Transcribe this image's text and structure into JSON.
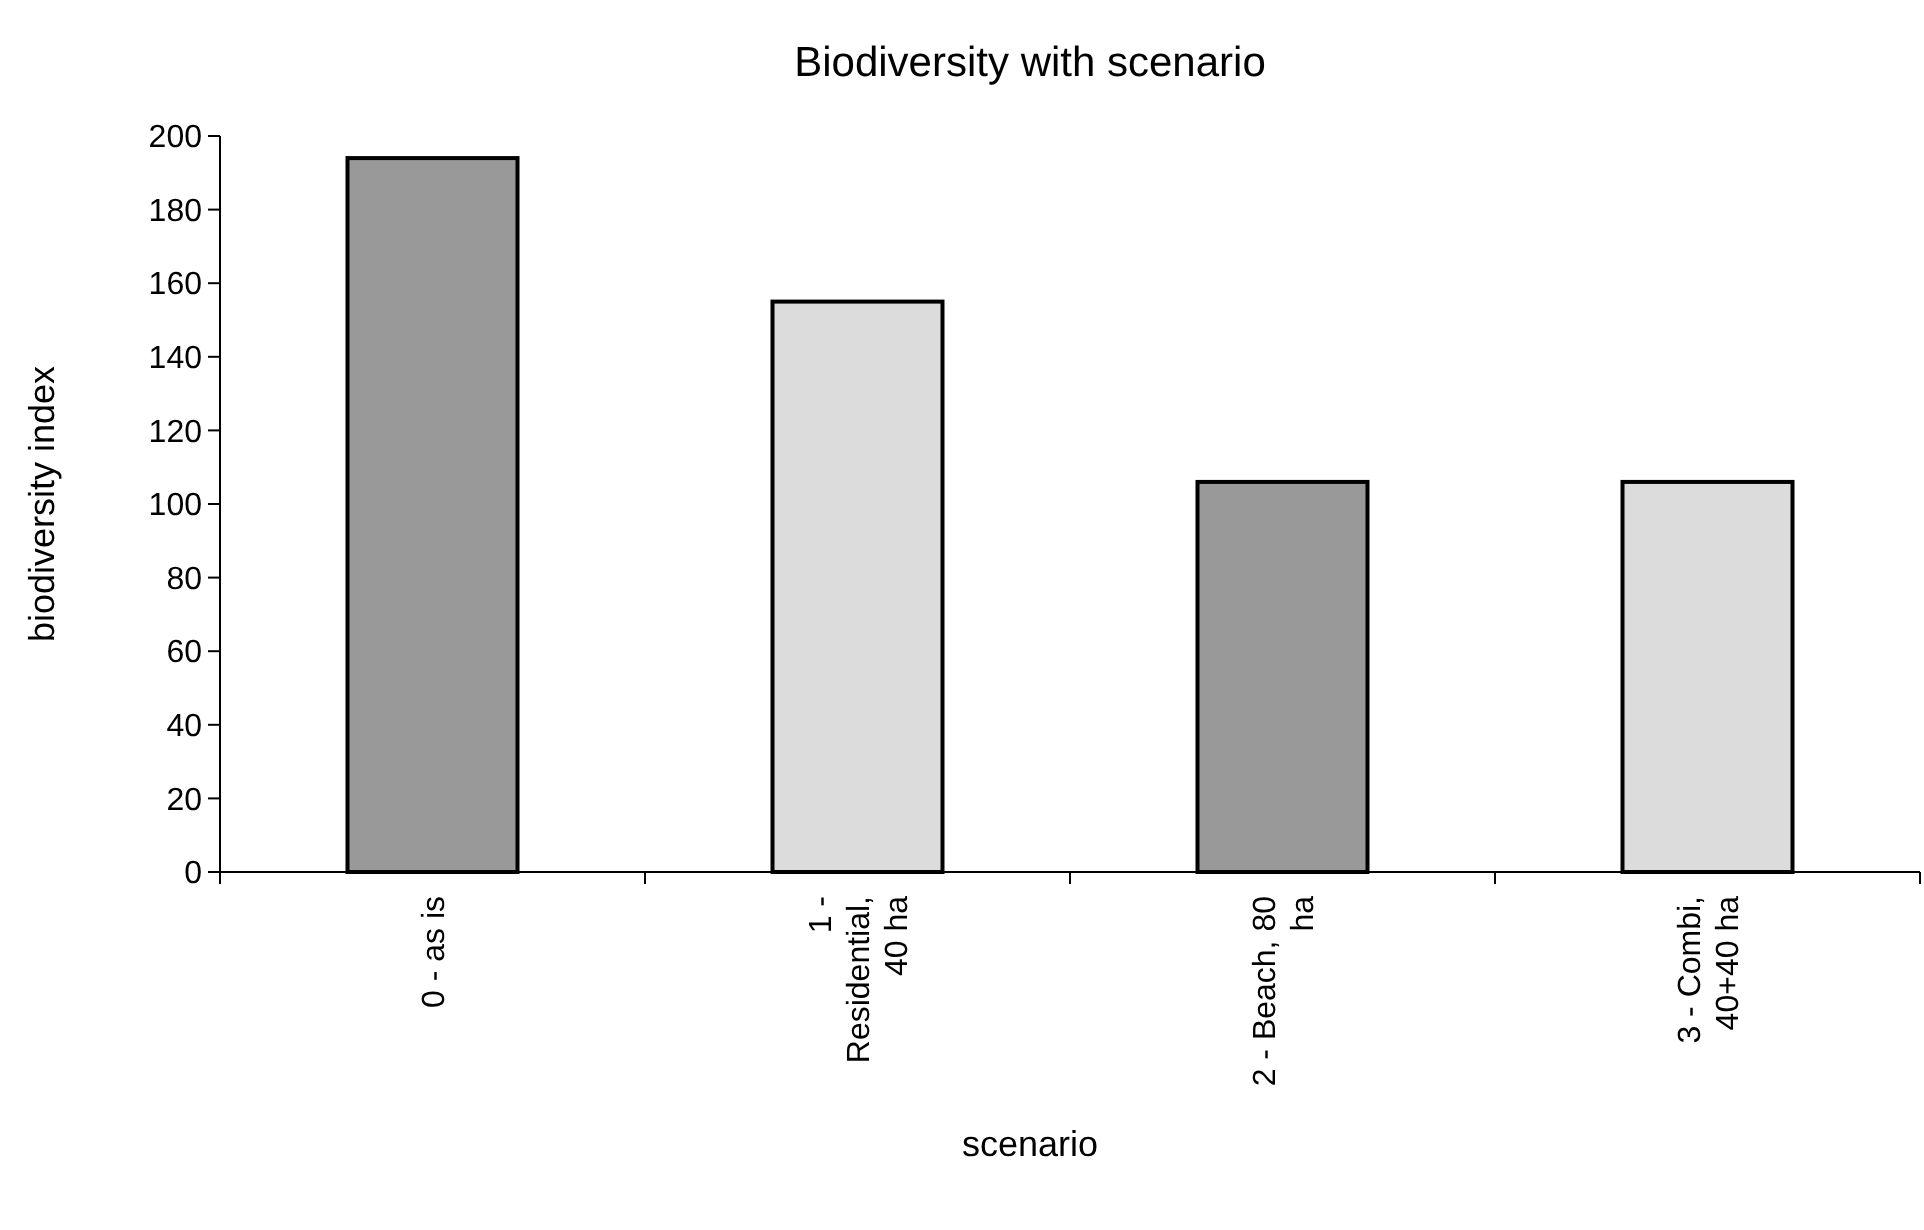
{
  "chart_data": {
    "type": "bar",
    "title": "Biodiversity with scenario",
    "xlabel": "scenario",
    "ylabel": "biodiversity index",
    "categories": [
      "0 - as is",
      "1 - Residential, 40 ha",
      "2 - Beach, 80 ha",
      "3 - Combi, 40+40 ha"
    ],
    "values": [
      194,
      155,
      106,
      106
    ],
    "colors": [
      "#999999",
      "#dcdcdc",
      "#999999",
      "#dcdcdc"
    ],
    "ylim": [
      0,
      200
    ],
    "yticks": [
      0,
      20,
      40,
      60,
      80,
      100,
      120,
      140,
      160,
      180,
      200
    ],
    "grid": false
  }
}
